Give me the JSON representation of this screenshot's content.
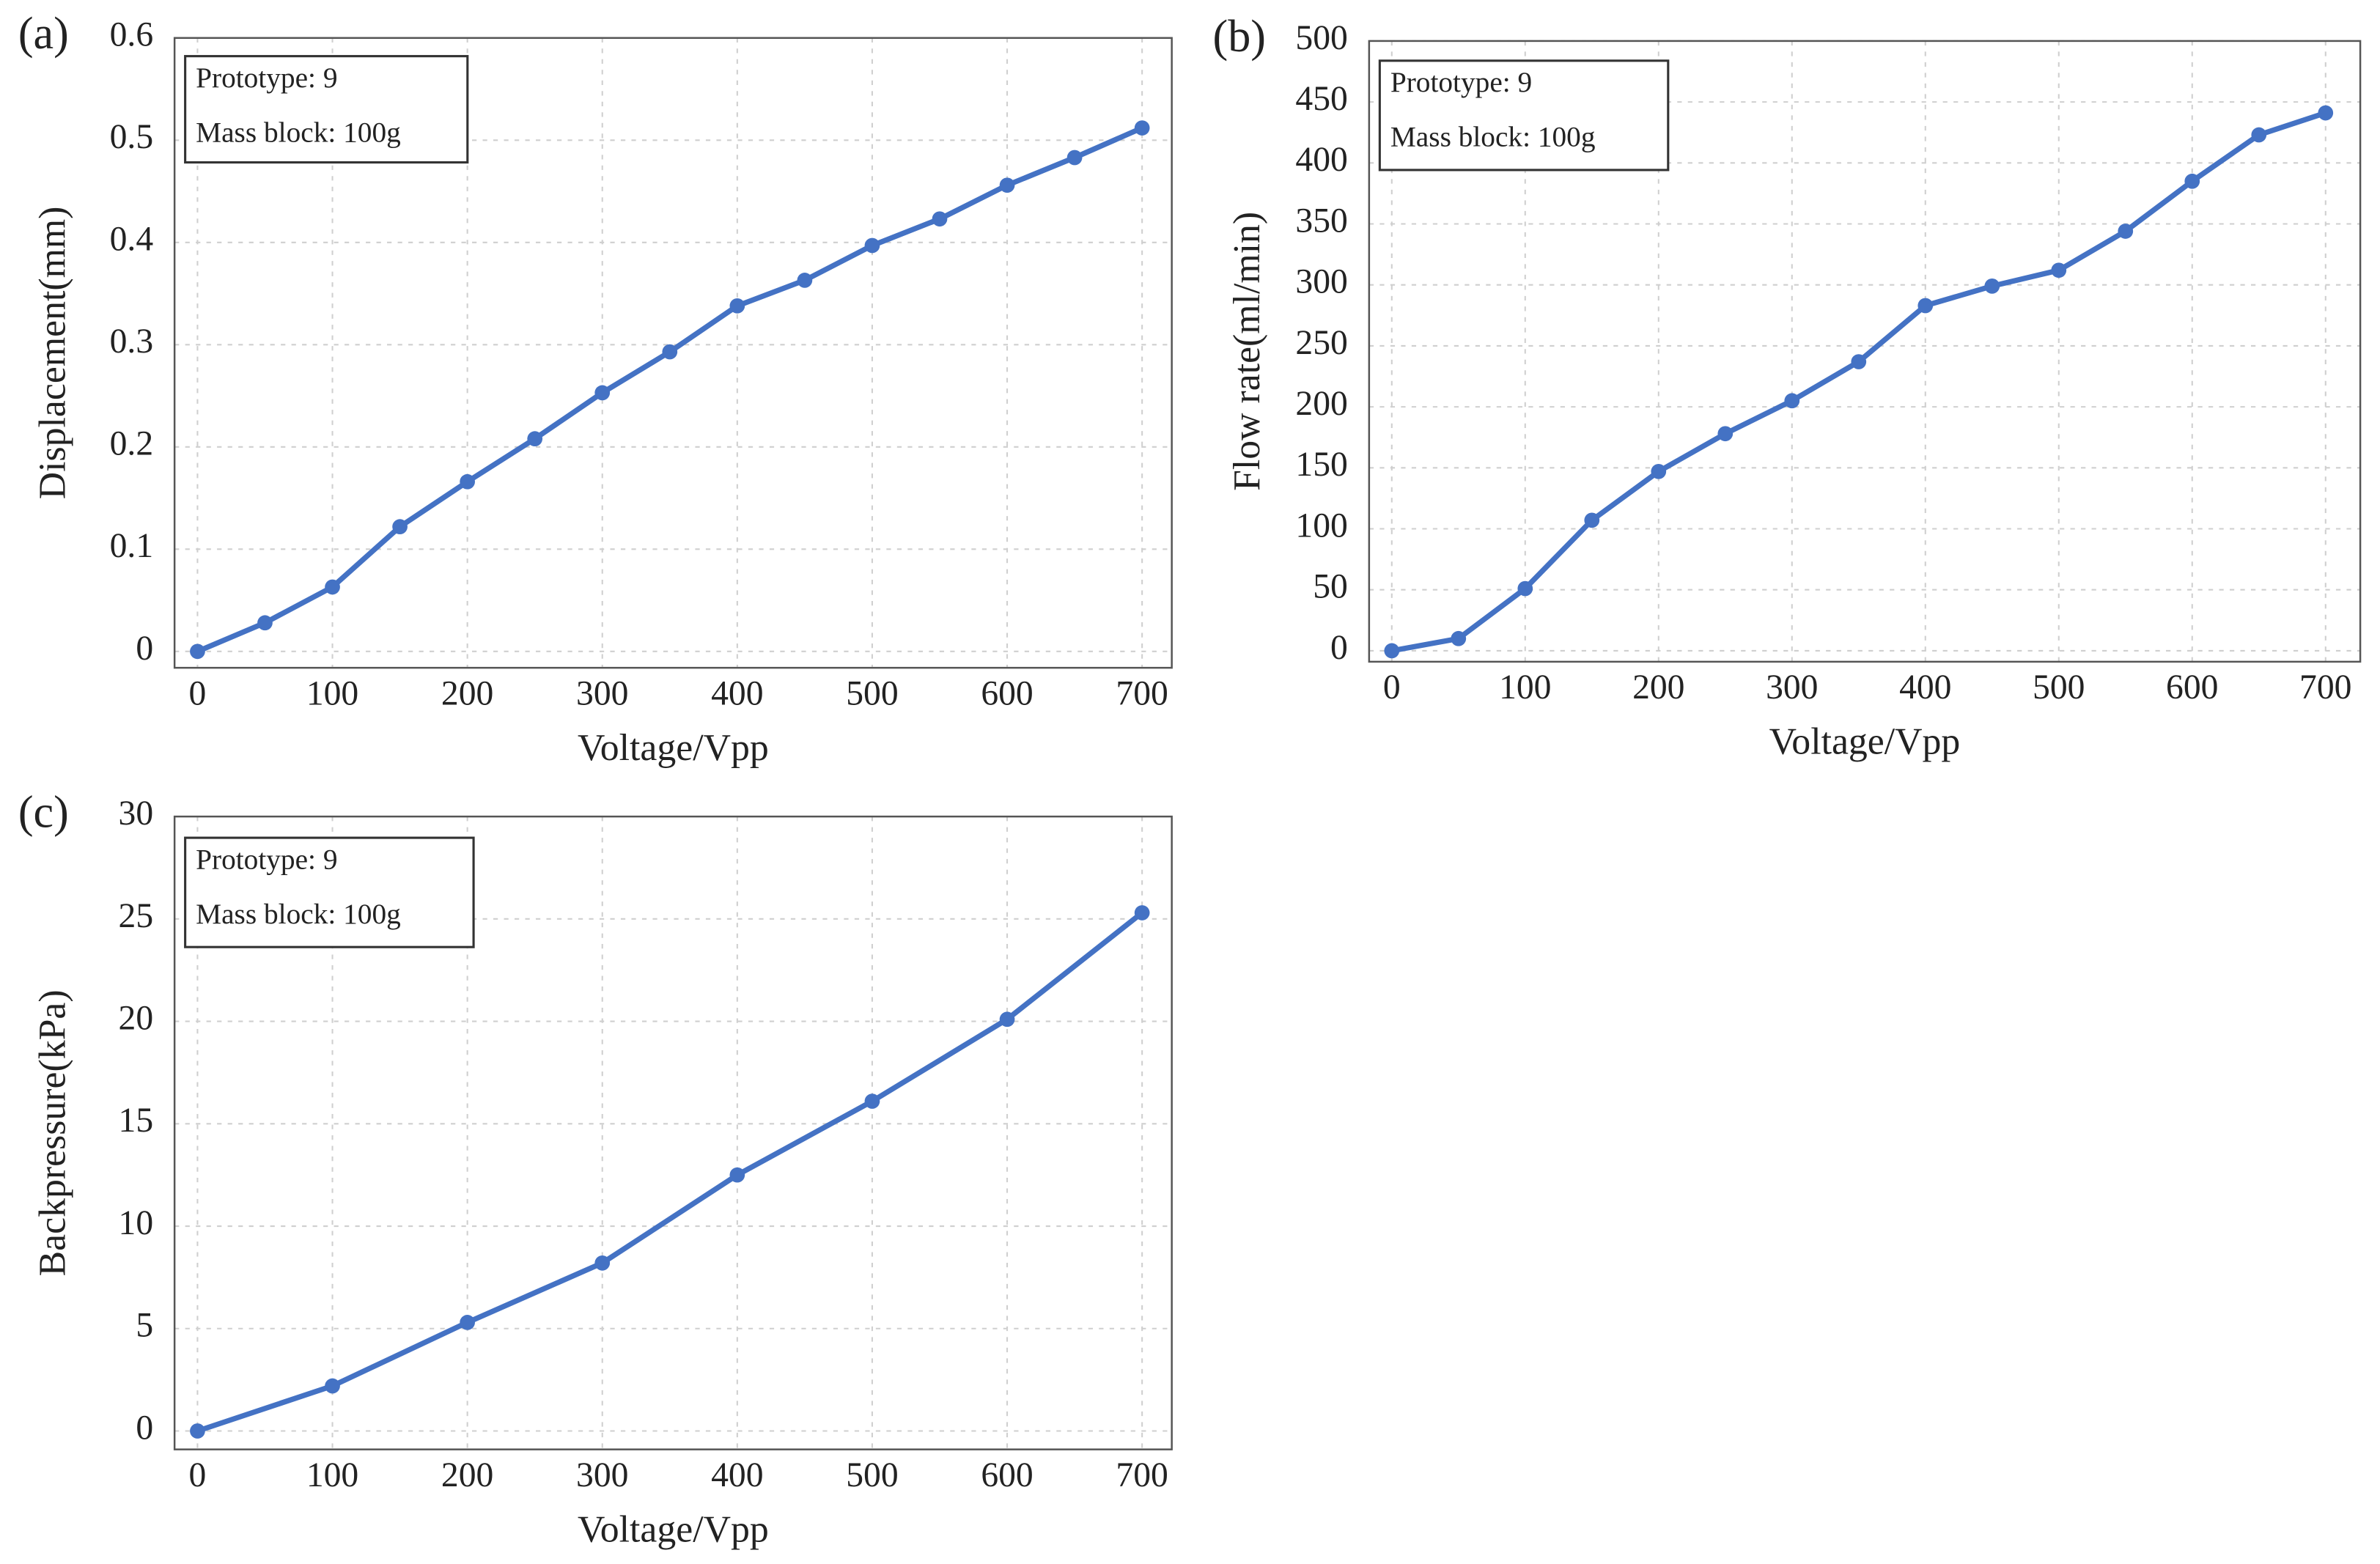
{
  "chart_data": [
    {
      "type": "line",
      "panel_label": "(a)",
      "xlabel": "Voltage/Vpp",
      "ylabel": "Displacement(mm)",
      "annotations": [
        "Prototype: 9",
        "Mass block: 100g"
      ],
      "x": [
        0,
        50,
        100,
        150,
        200,
        250,
        300,
        350,
        400,
        450,
        500,
        550,
        600,
        650,
        700
      ],
      "values": [
        0,
        0.028,
        0.063,
        0.122,
        0.166,
        0.208,
        0.253,
        0.293,
        0.338,
        0.363,
        0.397,
        0.423,
        0.456,
        0.483,
        0.512
      ],
      "color": "#4472c4",
      "grid": true,
      "xlim": [
        -17,
        722
      ],
      "xticks": [
        0,
        100,
        200,
        300,
        400,
        500,
        600,
        700
      ],
      "ylim": [
        -0.016,
        0.6
      ],
      "yticks": [
        0,
        0.1,
        0.2,
        0.3,
        0.4,
        0.5,
        0.6
      ]
    },
    {
      "type": "line",
      "panel_label": "(b)",
      "xlabel": "Voltage/Vpp",
      "ylabel": "Flow rate(ml/min)",
      "annotations": [
        "Prototype: 9",
        "Mass block: 100g"
      ],
      "x": [
        0,
        50,
        100,
        150,
        200,
        250,
        300,
        350,
        400,
        450,
        500,
        550,
        600,
        650,
        700
      ],
      "values": [
        0,
        10,
        51,
        107,
        147,
        178,
        205,
        237,
        283,
        299,
        312,
        344,
        385,
        423,
        441
      ],
      "color": "#4472c4",
      "grid": true,
      "xlim": [
        -17,
        726
      ],
      "xticks": [
        0,
        100,
        200,
        300,
        400,
        500,
        600,
        700
      ],
      "ylim": [
        -9,
        500
      ],
      "yticks": [
        0,
        50,
        100,
        150,
        200,
        250,
        300,
        350,
        400,
        450,
        500
      ]
    },
    {
      "type": "line",
      "panel_label": "(c)",
      "xlabel": "Voltage/Vpp",
      "ylabel": "Backpressure(kPa)",
      "annotations": [
        "Prototype: 9",
        "Mass block: 100g"
      ],
      "x": [
        0,
        100,
        200,
        300,
        400,
        500,
        600,
        700
      ],
      "values": [
        0,
        2.2,
        5.3,
        8.2,
        12.5,
        16.1,
        20.1,
        25.3
      ],
      "color": "#4472c4",
      "grid": true,
      "xlim": [
        -17,
        722
      ],
      "xticks": [
        0,
        100,
        200,
        300,
        400,
        500,
        600,
        700
      ],
      "ylim": [
        -0.9,
        30
      ],
      "yticks": [
        0,
        5,
        10,
        15,
        20,
        25,
        30
      ]
    }
  ]
}
